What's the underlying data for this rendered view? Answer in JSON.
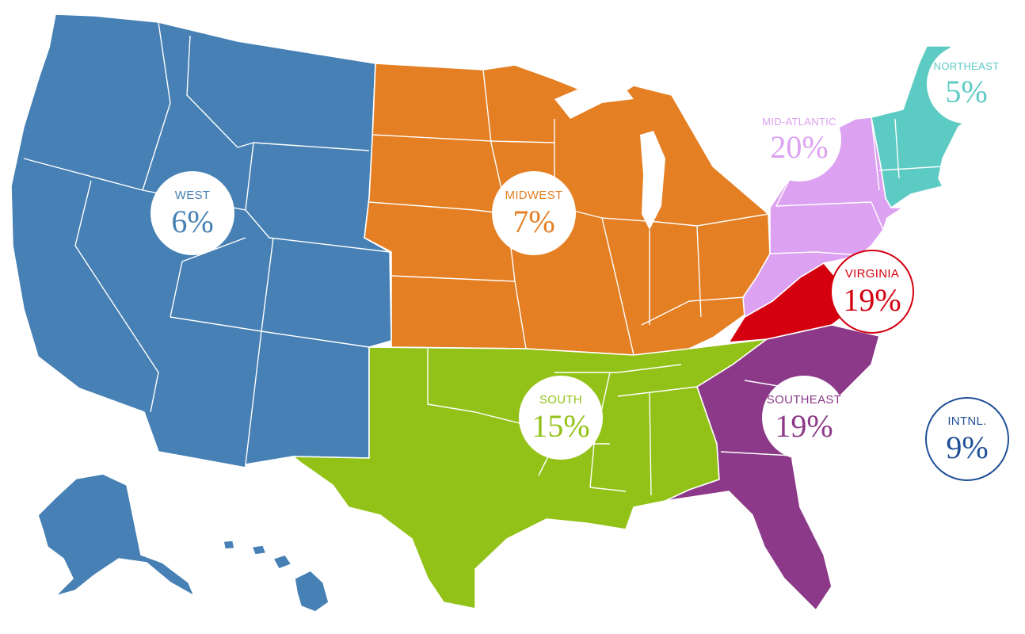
{
  "regions": [
    {
      "id": "west",
      "label": "WEST",
      "percent": "6%",
      "color": "#4680b4"
    },
    {
      "id": "midwest",
      "label": "MIDWEST",
      "percent": "7%",
      "color": "#e47f23"
    },
    {
      "id": "south",
      "label": "SOUTH",
      "percent": "15%",
      "color": "#92c217"
    },
    {
      "id": "southeast",
      "label": "SOUTHEAST",
      "percent": "19%",
      "color": "#8b3988"
    },
    {
      "id": "virginia",
      "label": "VIRGINIA",
      "percent": "19%",
      "color": "#d4000f"
    },
    {
      "id": "mid-atlantic",
      "label": "MID-ATLANTIC",
      "percent": "20%",
      "color": "#dca1f1"
    },
    {
      "id": "northeast",
      "label": "NORTHEAST",
      "percent": "5%",
      "color": "#5ccbc3"
    },
    {
      "id": "intl",
      "label": "INTNL.",
      "percent": "9%",
      "color": "#1f4f97"
    }
  ]
}
